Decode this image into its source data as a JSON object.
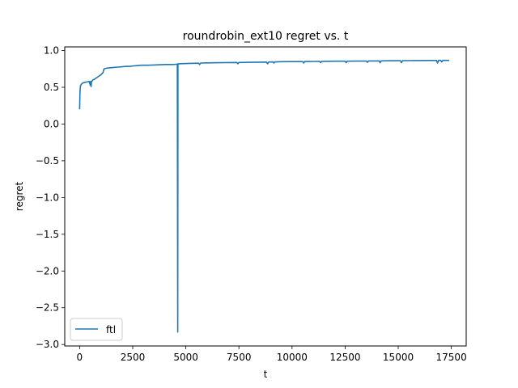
{
  "chart_data": {
    "type": "line",
    "title": "roundrobin_ext10 regret vs. t",
    "xlabel": "t",
    "ylabel": "regret",
    "xlim": [
      -700,
      18200
    ],
    "ylim": [
      -3.02,
      1.05
    ],
    "xticks": [
      0,
      2500,
      5000,
      7500,
      10000,
      12500,
      15000,
      17500
    ],
    "xtick_labels": [
      "0",
      "2500",
      "5000",
      "7500",
      "10000",
      "12500",
      "15000",
      "17500"
    ],
    "yticks": [
      1.0,
      0.5,
      0.0,
      -0.5,
      -1.0,
      -1.5,
      -2.0,
      -2.5,
      -3.0
    ],
    "ytick_labels": [
      "1.0",
      "0.5",
      "0.0",
      "−0.5",
      "−1.0",
      "−1.5",
      "−2.0",
      "−2.5",
      "−3.0"
    ],
    "grid": false,
    "legend": {
      "location": "lower left",
      "entries": [
        "ftl"
      ]
    },
    "series": [
      {
        "name": "ftl",
        "color": "#1f77b4",
        "x": [
          0,
          20,
          40,
          80,
          150,
          300,
          450,
          500,
          520,
          540,
          560,
          600,
          620,
          700,
          850,
          1000,
          1100,
          1150,
          1250,
          1400,
          1600,
          1800,
          2000,
          2200,
          2400,
          2500,
          2700,
          2900,
          3200,
          3600,
          4000,
          4400,
          4600,
          4620,
          4630,
          4640,
          4660,
          4900,
          5200,
          5600,
          5650,
          5700,
          6000,
          6500,
          7000,
          7400,
          7450,
          7500,
          8000,
          8500,
          8800,
          8850,
          8900,
          9000,
          9100,
          9150,
          9200,
          9500,
          10000,
          10500,
          10550,
          10600,
          11000,
          11300,
          11350,
          11400,
          12000,
          12500,
          12550,
          12600,
          13000,
          13500,
          13550,
          13600,
          14000,
          14100,
          14150,
          14200,
          14500,
          15000,
          15100,
          15150,
          15200,
          15500,
          16000,
          16500,
          16800,
          16850,
          16900,
          17000,
          17050,
          17100,
          17400
        ],
        "values": [
          0.2,
          0.45,
          0.52,
          0.54,
          0.56,
          0.57,
          0.58,
          0.53,
          0.58,
          0.51,
          0.58,
          0.59,
          0.6,
          0.61,
          0.64,
          0.67,
          0.7,
          0.75,
          0.76,
          0.765,
          0.77,
          0.775,
          0.78,
          0.785,
          0.785,
          0.79,
          0.795,
          0.8,
          0.8,
          0.805,
          0.81,
          0.81,
          0.815,
          -2.83,
          0.82,
          0.82,
          0.82,
          0.822,
          0.825,
          0.828,
          0.81,
          0.83,
          0.832,
          0.835,
          0.836,
          0.838,
          0.82,
          0.838,
          0.84,
          0.842,
          0.843,
          0.82,
          0.844,
          0.845,
          0.846,
          0.83,
          0.846,
          0.848,
          0.85,
          0.85,
          0.83,
          0.851,
          0.852,
          0.853,
          0.835,
          0.853,
          0.855,
          0.856,
          0.835,
          0.856,
          0.857,
          0.857,
          0.84,
          0.858,
          0.858,
          0.86,
          0.835,
          0.86,
          0.861,
          0.862,
          0.862,
          0.835,
          0.862,
          0.863,
          0.864,
          0.865,
          0.865,
          0.83,
          0.866,
          0.866,
          0.845,
          0.866,
          0.866
        ]
      }
    ]
  }
}
